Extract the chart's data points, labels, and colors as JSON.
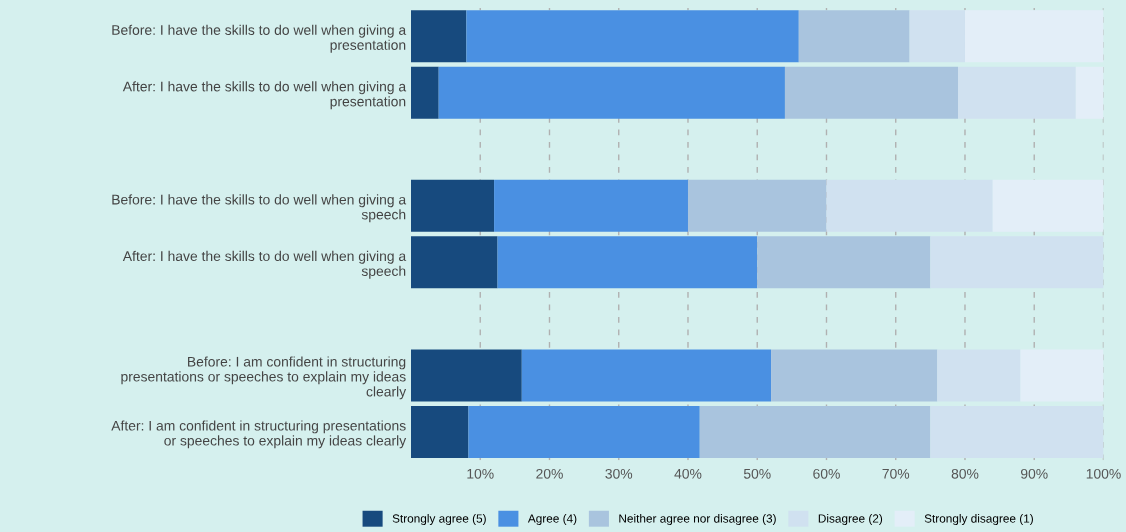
{
  "chart_data": {
    "type": "bar",
    "orientation": "horizontal",
    "stacked": true,
    "categories": [
      "Before: I have the skills to do well when giving a\npresentation",
      "After: I have the skills to do well when giving a\npresentation",
      null,
      "Before: I have the skills to do well when giving a\nspeech",
      "After: I have the skills to do well when giving a\nspeech",
      null,
      "Before: I am confident in structuring\npresentations or speeches to explain my ideas\nclearly",
      "After: I am confident in structuring presentations\nor speeches to explain my ideas clearly"
    ],
    "series": [
      {
        "name": "Strongly agree (5)",
        "color": "#174a7e",
        "values": [
          8,
          4,
          null,
          12,
          12.5,
          null,
          16,
          8.3
        ]
      },
      {
        "name": "Agree (4)",
        "color": "#4a90e2",
        "values": [
          48,
          50,
          null,
          28,
          37.5,
          null,
          36,
          33.4
        ]
      },
      {
        "name": "Neither agree nor disagree (3)",
        "color": "#a9c4de",
        "values": [
          16,
          25,
          null,
          20,
          25,
          null,
          24,
          33.3
        ]
      },
      {
        "name": "Disagree (2)",
        "color": "#d0e1f0",
        "values": [
          8,
          17,
          null,
          24,
          25,
          null,
          12,
          25
        ]
      },
      {
        "name": "Strongly disagree (1)",
        "color": "#e3eef8",
        "values": [
          20,
          4,
          null,
          16,
          0,
          null,
          12,
          0
        ]
      }
    ],
    "xlim": [
      0,
      100
    ],
    "xticks": [
      {
        "value": 10,
        "label": "10%"
      },
      {
        "value": 20,
        "label": "20%"
      },
      {
        "value": 30,
        "label": "30%"
      },
      {
        "value": 40,
        "label": "40%"
      },
      {
        "value": 50,
        "label": "50%"
      },
      {
        "value": 60,
        "label": "60%"
      },
      {
        "value": 70,
        "label": "70%"
      },
      {
        "value": 80,
        "label": "80%"
      },
      {
        "value": 90,
        "label": "90%"
      },
      {
        "value": 100,
        "label": "100%"
      }
    ],
    "grid": "x",
    "legend": "bottom"
  }
}
